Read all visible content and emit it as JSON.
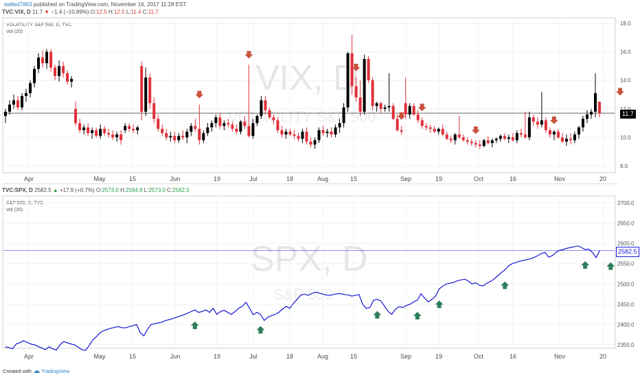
{
  "header": {
    "author": "walled7863",
    "published_text": "published on TradingView.com, November 16, 2017 11:28 EST"
  },
  "top_panel": {
    "legend_symbol": "TVC:VIX, D",
    "legend_last": "11.7",
    "legend_change": "−1.4 (−10.89%)",
    "legend_ohlc": [
      {
        "k": "O:",
        "v": "12.5"
      },
      {
        "k": "H:",
        "v": "12.5"
      },
      {
        "k": "L:",
        "v": "11.4"
      },
      {
        "k": "C:",
        "v": "11.7"
      }
    ],
    "title": "VOLATILITY S&P 500, D, TVC",
    "vol_label": "Vol (20)",
    "watermark_big": "VIX, D",
    "watermark_small": "VOLATILITY S&P 500",
    "price_badge": "11.7"
  },
  "bottom_panel": {
    "legend_symbol": "TVC:SPX, D",
    "legend_last": "2582.5",
    "legend_change": "+17.9 (+0.7%)",
    "legend_ohlc": [
      {
        "k": "O:",
        "v": "2573.0"
      },
      {
        "k": "H:",
        "v": "2584.8"
      },
      {
        "k": "L:",
        "v": "2573.0"
      },
      {
        "k": "C:",
        "v": "2582.5"
      }
    ],
    "title": "S&P 500, D, TVC",
    "vol_label": "Vol (20)",
    "watermark_big": "SPX, D",
    "watermark_small": "S&P 500",
    "price_badge": "2582.5"
  },
  "footer": {
    "created_with": "Created with",
    "brand": "TradingView"
  },
  "colors": {
    "up": "#000000",
    "down": "#e0303a",
    "line": "#1414d2",
    "arrow_down": "#c9523e",
    "arrow_up": "#2e7d5b",
    "badge": "#000000",
    "badge_spx": "#1a1ae0"
  },
  "chart_data": [
    {
      "type": "candlestick",
      "symbol": "TVC:VIX",
      "x_tick_labels": [
        "Apr",
        "May",
        "15",
        "Jun",
        "19",
        "Jul",
        "18",
        "Aug",
        "15",
        "Sep",
        "19",
        "Oct",
        "16",
        "Nov",
        "20"
      ],
      "y_ticks": [
        8.0,
        10.0,
        12.0,
        14.0,
        16.0,
        18.0
      ],
      "ylim": [
        7.4,
        18.5
      ],
      "last_price": 11.7,
      "grid": true,
      "candles": [
        [
          11.5,
          12.0,
          11.0,
          11.8
        ],
        [
          11.8,
          12.6,
          11.6,
          12.3
        ],
        [
          12.3,
          13.0,
          12.0,
          12.6
        ],
        [
          12.6,
          12.9,
          11.9,
          12.1
        ],
        [
          12.1,
          13.1,
          11.9,
          12.9
        ],
        [
          12.9,
          13.4,
          12.5,
          13.1
        ],
        [
          13.1,
          14.0,
          12.8,
          13.8
        ],
        [
          13.8,
          15.0,
          13.5,
          14.8
        ],
        [
          14.8,
          15.9,
          14.5,
          15.6
        ],
        [
          15.6,
          16.1,
          14.9,
          15.2
        ],
        [
          15.2,
          16.2,
          14.8,
          16.0
        ],
        [
          16.0,
          16.2,
          14.6,
          14.9
        ],
        [
          14.9,
          15.1,
          14.0,
          14.3
        ],
        [
          14.3,
          15.4,
          13.9,
          15.0
        ],
        [
          15.0,
          15.3,
          14.2,
          14.5
        ],
        [
          14.5,
          14.7,
          13.7,
          13.9
        ],
        [
          13.9,
          14.3,
          13.5,
          14.1
        ],
        [
          12.0,
          12.5,
          10.8,
          11.0
        ],
        [
          11.0,
          11.3,
          10.3,
          10.5
        ],
        [
          10.5,
          10.9,
          10.2,
          10.7
        ],
        [
          10.7,
          11.0,
          10.1,
          10.3
        ],
        [
          10.3,
          10.7,
          9.9,
          10.5
        ],
        [
          10.5,
          10.7,
          10.0,
          10.1
        ],
        [
          10.1,
          10.9,
          9.9,
          10.6
        ],
        [
          10.6,
          10.8,
          10.1,
          10.3
        ],
        [
          10.3,
          10.6,
          10.0,
          10.2
        ],
        [
          10.2,
          10.5,
          9.8,
          10.0
        ],
        [
          10.0,
          10.4,
          9.7,
          10.2
        ],
        [
          10.2,
          10.5,
          9.5,
          9.8
        ],
        [
          10.5,
          11.0,
          10.3,
          10.8
        ],
        [
          10.8,
          11.0,
          10.4,
          10.6
        ],
        [
          10.6,
          10.9,
          10.3,
          10.5
        ],
        [
          10.5,
          10.8,
          10.2,
          10.7
        ],
        [
          15.0,
          15.3,
          11.2,
          11.8
        ],
        [
          11.8,
          14.9,
          11.5,
          14.2
        ],
        [
          14.2,
          14.5,
          12.0,
          12.4
        ],
        [
          12.4,
          12.8,
          11.0,
          11.3
        ],
        [
          11.3,
          11.6,
          10.4,
          10.6
        ],
        [
          10.6,
          10.9,
          10.1,
          10.3
        ],
        [
          10.3,
          10.6,
          9.8,
          10.0
        ],
        [
          10.0,
          10.4,
          9.7,
          10.1
        ],
        [
          10.1,
          10.4,
          9.6,
          9.8
        ],
        [
          9.8,
          10.3,
          9.6,
          10.1
        ],
        [
          10.1,
          10.5,
          9.8,
          10.0
        ],
        [
          10.0,
          10.6,
          9.6,
          10.4
        ],
        [
          10.4,
          11.0,
          10.1,
          10.8
        ],
        [
          10.8,
          11.3,
          10.4,
          10.6
        ],
        [
          10.6,
          12.3,
          9.5,
          9.8
        ],
        [
          9.8,
          10.5,
          9.6,
          10.3
        ],
        [
          10.3,
          11.0,
          10.1,
          10.7
        ],
        [
          10.7,
          11.2,
          10.4,
          11.0
        ],
        [
          11.0,
          11.6,
          10.7,
          11.4
        ],
        [
          11.4,
          11.7,
          10.6,
          10.8
        ],
        [
          10.8,
          11.2,
          10.5,
          11.0
        ],
        [
          11.0,
          11.3,
          10.7,
          10.9
        ],
        [
          10.9,
          11.1,
          10.4,
          10.6
        ],
        [
          10.6,
          10.9,
          10.2,
          10.4
        ],
        [
          10.4,
          11.2,
          10.2,
          11.1
        ],
        [
          11.1,
          11.5,
          10.6,
          10.8
        ],
        [
          10.8,
          15.1,
          10.0,
          10.1
        ],
        [
          10.1,
          11.3,
          9.9,
          11.0
        ],
        [
          11.0,
          11.6,
          10.8,
          11.5
        ],
        [
          11.5,
          12.9,
          11.3,
          12.6
        ],
        [
          12.6,
          12.9,
          11.6,
          11.9
        ],
        [
          11.9,
          12.1,
          11.3,
          11.4
        ],
        [
          11.4,
          11.6,
          10.9,
          11.2
        ],
        [
          11.2,
          11.4,
          10.3,
          10.5
        ],
        [
          10.5,
          10.8,
          10.0,
          10.2
        ],
        [
          10.2,
          10.6,
          9.9,
          10.4
        ],
        [
          10.4,
          10.6,
          10.1,
          10.2
        ],
        [
          10.2,
          10.5,
          9.9,
          10.1
        ],
        [
          10.1,
          10.3,
          9.7,
          9.9
        ],
        [
          9.9,
          10.6,
          9.6,
          10.4
        ],
        [
          10.4,
          10.7,
          9.5,
          9.7
        ],
        [
          9.7,
          10.0,
          9.3,
          9.5
        ],
        [
          9.5,
          10.0,
          9.2,
          9.8
        ],
        [
          9.8,
          10.7,
          9.6,
          10.5
        ],
        [
          10.5,
          10.8,
          10.1,
          10.3
        ],
        [
          10.3,
          10.6,
          10.0,
          10.4
        ],
        [
          10.4,
          10.7,
          10.0,
          10.2
        ],
        [
          10.2,
          10.9,
          10.0,
          10.7
        ],
        [
          10.7,
          11.3,
          10.3,
          11.0
        ],
        [
          11.0,
          12.4,
          10.7,
          12.1
        ],
        [
          12.1,
          16.0,
          11.8,
          15.9
        ],
        [
          15.9,
          17.2,
          13.0,
          13.6
        ],
        [
          13.6,
          14.2,
          12.5,
          12.8
        ],
        [
          12.8,
          14.0,
          11.5,
          11.8
        ],
        [
          11.8,
          15.8,
          11.6,
          15.5
        ],
        [
          15.5,
          15.7,
          13.8,
          14.0
        ],
        [
          14.0,
          14.2,
          11.9,
          12.2
        ],
        [
          12.2,
          12.5,
          11.8,
          12.4
        ],
        [
          12.4,
          12.5,
          11.7,
          12.0
        ],
        [
          12.0,
          12.3,
          11.8,
          12.1
        ],
        [
          12.1,
          14.5,
          11.8,
          12.2
        ],
        [
          12.2,
          12.4,
          11.2,
          11.3
        ],
        [
          11.3,
          11.6,
          10.4,
          10.5
        ],
        [
          10.5,
          10.8,
          10.2,
          10.4
        ],
        [
          12.4,
          14.2,
          11.3,
          11.6
        ],
        [
          11.6,
          12.4,
          11.3,
          12.2
        ],
        [
          12.2,
          12.4,
          11.5,
          11.6
        ],
        [
          11.6,
          11.9,
          11.0,
          11.2
        ],
        [
          11.2,
          11.4,
          10.6,
          10.8
        ],
        [
          10.8,
          11.0,
          10.5,
          10.7
        ],
        [
          10.7,
          10.9,
          10.3,
          10.6
        ],
        [
          10.6,
          10.8,
          10.3,
          10.4
        ],
        [
          10.4,
          10.7,
          10.2,
          10.6
        ],
        [
          10.6,
          10.9,
          10.1,
          10.2
        ],
        [
          10.2,
          10.4,
          9.8,
          9.9
        ],
        [
          9.9,
          10.1,
          9.6,
          9.8
        ],
        [
          9.8,
          10.3,
          9.5,
          10.2
        ],
        [
          10.2,
          11.5,
          9.9,
          10.0
        ],
        [
          10.0,
          10.2,
          9.7,
          9.8
        ],
        [
          9.8,
          10.0,
          9.5,
          9.7
        ],
        [
          9.7,
          9.9,
          9.4,
          9.6
        ],
        [
          9.6,
          9.8,
          9.3,
          9.5
        ],
        [
          9.5,
          9.8,
          9.2,
          9.4
        ],
        [
          9.4,
          9.9,
          9.3,
          9.8
        ],
        [
          9.8,
          10.1,
          9.5,
          9.6
        ],
        [
          9.6,
          9.9,
          9.3,
          9.8
        ],
        [
          9.8,
          10.0,
          9.6,
          9.9
        ],
        [
          9.9,
          10.2,
          9.7,
          10.1
        ],
        [
          10.1,
          10.3,
          9.8,
          9.9
        ],
        [
          9.9,
          10.2,
          9.6,
          10.0
        ],
        [
          10.0,
          10.3,
          9.7,
          9.8
        ],
        [
          9.8,
          10.5,
          9.6,
          10.3
        ],
        [
          10.3,
          10.6,
          10.0,
          10.2
        ],
        [
          10.2,
          11.8,
          9.9,
          10.0
        ],
        [
          10.0,
          11.8,
          9.8,
          11.4
        ],
        [
          11.4,
          11.6,
          10.8,
          11.1
        ],
        [
          11.1,
          11.4,
          10.6,
          10.9
        ],
        [
          10.9,
          13.2,
          10.7,
          11.2
        ],
        [
          11.2,
          11.4,
          10.3,
          10.5
        ],
        [
          10.5,
          10.7,
          10.0,
          10.2
        ],
        [
          10.2,
          10.5,
          9.8,
          10.4
        ],
        [
          10.4,
          10.6,
          9.9,
          10.0
        ],
        [
          10.0,
          10.3,
          9.6,
          9.7
        ],
        [
          9.7,
          10.2,
          9.4,
          9.9
        ],
        [
          9.9,
          10.3,
          9.5,
          9.8
        ],
        [
          9.8,
          10.4,
          9.6,
          10.2
        ],
        [
          10.2,
          10.8,
          9.9,
          10.7
        ],
        [
          10.7,
          11.5,
          10.4,
          11.3
        ],
        [
          11.3,
          11.9,
          11.0,
          11.6
        ],
        [
          11.6,
          12.0,
          11.3,
          11.8
        ],
        [
          11.8,
          14.5,
          11.4,
          13.1
        ],
        [
          12.5,
          12.5,
          11.4,
          11.7
        ]
      ]
    },
    {
      "type": "line",
      "symbol": "TVC:SPX",
      "x_tick_labels": [
        "Apr",
        "May",
        "15",
        "Jun",
        "19",
        "Jul",
        "18",
        "Aug",
        "15",
        "Sep",
        "19",
        "Oct",
        "16",
        "Nov",
        "20"
      ],
      "y_ticks": [
        2350.0,
        2400.0,
        2450.0,
        2500.0,
        2550.0,
        2600.0,
        2650.0,
        2700.0
      ],
      "ylim": [
        2338,
        2710
      ],
      "last_price": 2582.5,
      "grid": true,
      "values": [
        2345,
        2343,
        2340,
        2352,
        2355,
        2360,
        2356,
        2352,
        2350,
        2346,
        2342,
        2338,
        2345,
        2340,
        2337,
        2350,
        2358,
        2355,
        2352,
        2350,
        2344,
        2338,
        2336,
        2348,
        2362,
        2370,
        2380,
        2385,
        2388,
        2391,
        2393,
        2395,
        2392,
        2392,
        2395,
        2397,
        2400,
        2380,
        2372,
        2388,
        2400,
        2402,
        2404,
        2406,
        2410,
        2412,
        2415,
        2418,
        2421,
        2424,
        2428,
        2432,
        2436,
        2430,
        2432,
        2436,
        2430,
        2440,
        2425,
        2432,
        2435,
        2430,
        2425,
        2432,
        2440,
        2445,
        2455,
        2440,
        2424,
        2430,
        2425,
        2410,
        2418,
        2422,
        2425,
        2430,
        2438,
        2445,
        2440,
        2452,
        2462,
        2472,
        2475,
        2472,
        2476,
        2480,
        2478,
        2475,
        2473,
        2472,
        2474,
        2476,
        2476,
        2474,
        2473,
        2470,
        2472,
        2474,
        2450,
        2440,
        2442,
        2460,
        2462,
        2458,
        2445,
        2432,
        2425,
        2438,
        2444,
        2442,
        2447,
        2450,
        2456,
        2460,
        2476,
        2465,
        2456,
        2462,
        2470,
        2488,
        2495,
        2500,
        2502,
        2504,
        2508,
        2510,
        2512,
        2507,
        2500,
        2503,
        2497,
        2495,
        2502,
        2506,
        2512,
        2520,
        2528,
        2535,
        2545,
        2550,
        2553,
        2556,
        2558,
        2560,
        2562,
        2565,
        2570,
        2575,
        2578,
        2566,
        2570,
        2578,
        2583,
        2585,
        2588,
        2590,
        2592,
        2594,
        2590,
        2585,
        2586,
        2578,
        2565,
        2582
      ]
    }
  ]
}
